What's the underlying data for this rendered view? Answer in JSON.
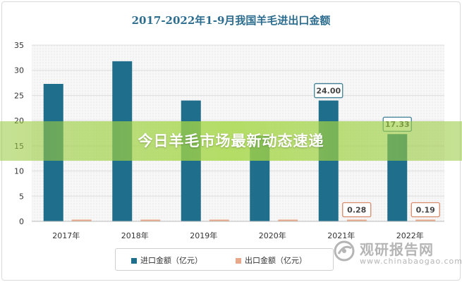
{
  "chart_data": {
    "type": "bar",
    "title": "2017-2022年1-9月我国羊毛进出口金额",
    "categories": [
      "2017年",
      "2018年",
      "2019年",
      "2020年",
      "2021年",
      "2022年"
    ],
    "series": [
      {
        "name": "进口金额（亿元）",
        "values": [
          27.3,
          31.8,
          24.0,
          17.0,
          24.0,
          17.33
        ],
        "color": "#1f6e8c"
      },
      {
        "name": "出口金额（亿元）",
        "values": [
          0.3,
          0.3,
          0.3,
          0.2,
          0.28,
          0.19
        ],
        "color": "#e8a98a"
      }
    ],
    "ylim": [
      0,
      35
    ],
    "yticks": [
      0,
      5,
      10,
      15,
      20,
      25,
      30,
      35
    ],
    "grid": true,
    "legend": "bottom",
    "data_labels": [
      {
        "series": 0,
        "index": 4,
        "text": "24.00"
      },
      {
        "series": 0,
        "index": 5,
        "text": "17.33"
      },
      {
        "series": 1,
        "index": 4,
        "text": "0.28"
      },
      {
        "series": 1,
        "index": 5,
        "text": "0.19"
      }
    ]
  },
  "banner": {
    "text": "今日羊毛市场最新动态速递"
  },
  "watermark": {
    "name_cn": "观研报告网",
    "url": "www.chinabaogao.com",
    "logo_icon": "watermark-logo-icon"
  }
}
